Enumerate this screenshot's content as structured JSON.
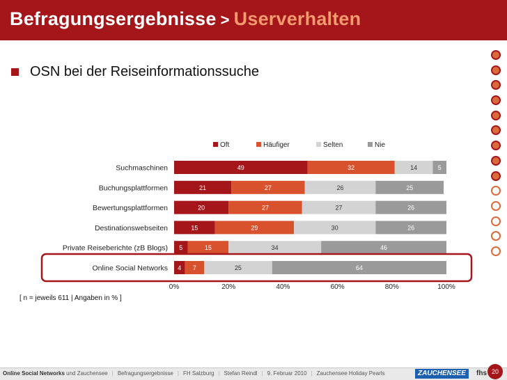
{
  "header": {
    "title": "Befragungsergebnisse",
    "separator": ">",
    "subtitle": "Userverhalten"
  },
  "bullet": {
    "text": "OSN bei der Reiseinformationssuche"
  },
  "side_nav": {
    "states": [
      "filled",
      "filled",
      "filled",
      "filled",
      "filled",
      "filled",
      "filled",
      "filled",
      "filled",
      "empty",
      "empty",
      "empty",
      "empty",
      "empty"
    ]
  },
  "colors": {
    "brand": "#a4161a",
    "accent": "#f39a6f",
    "oft": "#a4161a",
    "haeufiger": "#d9522e",
    "selten": "#d3d3d3",
    "nie": "#9a9a9a",
    "highlight": "#a4161a"
  },
  "chart_data": {
    "type": "bar",
    "orientation": "horizontal",
    "stacked": true,
    "categories": [
      "Suchmaschinen",
      "Buchungsplattformen",
      "Bewertungsplattformen",
      "Destinationswebseiten",
      "Private Reiseberichte (zB Blogs)",
      "Online Social Networks"
    ],
    "series": [
      {
        "name": "Oft",
        "values": [
          49,
          21,
          20,
          15,
          5,
          4
        ]
      },
      {
        "name": "Häufiger",
        "values": [
          32,
          27,
          27,
          29,
          15,
          7
        ]
      },
      {
        "name": "Selten",
        "values": [
          14,
          26,
          27,
          30,
          34,
          25
        ]
      },
      {
        "name": "Nie",
        "values": [
          5,
          25,
          26,
          26,
          46,
          64
        ]
      }
    ],
    "xlim": [
      0,
      100
    ],
    "ticks": [
      "0%",
      "20%",
      "40%",
      "60%",
      "80%",
      "100%"
    ],
    "highlighted_category": "Online Social Networks",
    "note": "[ n = jeweils 611  |  Angaben in % ]"
  },
  "footer": {
    "title_bold": "Online Social Networks",
    "title_rest": " und Zauchensee",
    "items": [
      "Befragungsergebnisse",
      "FH Salzburg",
      "Stefan Reindl",
      "9. Februar 2010",
      "Zauchensee Holiday Pearls"
    ],
    "logo": "ZAUCHENSEE",
    "org": "fhs",
    "page": "20"
  }
}
